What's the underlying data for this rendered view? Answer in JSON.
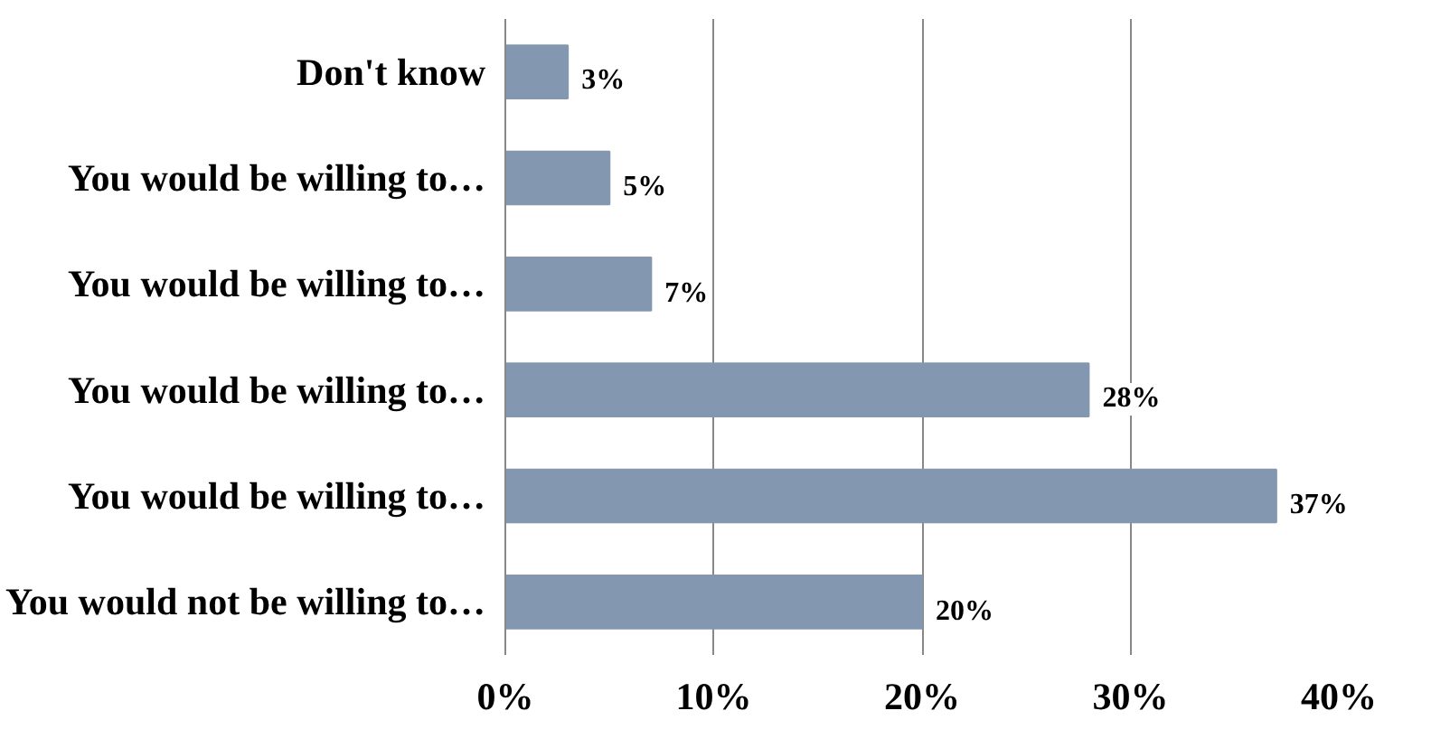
{
  "chart_data": {
    "type": "bar",
    "orientation": "horizontal",
    "categories": [
      "Don't know",
      "You would be willing to…",
      "You would be willing to…",
      "You would be willing to…",
      "You would be willing to…",
      "You would not be willing to…"
    ],
    "values": [
      3,
      5,
      7,
      28,
      37,
      20
    ],
    "value_labels": [
      "3%",
      "5%",
      "7%",
      "28%",
      "37%",
      "20%"
    ],
    "color": "#8497b0",
    "xlim": [
      0,
      40
    ],
    "xticks": [
      {
        "value": 0,
        "label": "0%"
      },
      {
        "value": 10,
        "label": "10%"
      },
      {
        "value": 20,
        "label": "20%"
      },
      {
        "value": 30,
        "label": "30%"
      },
      {
        "value": 40,
        "label": "40%"
      }
    ],
    "grid": "x"
  }
}
